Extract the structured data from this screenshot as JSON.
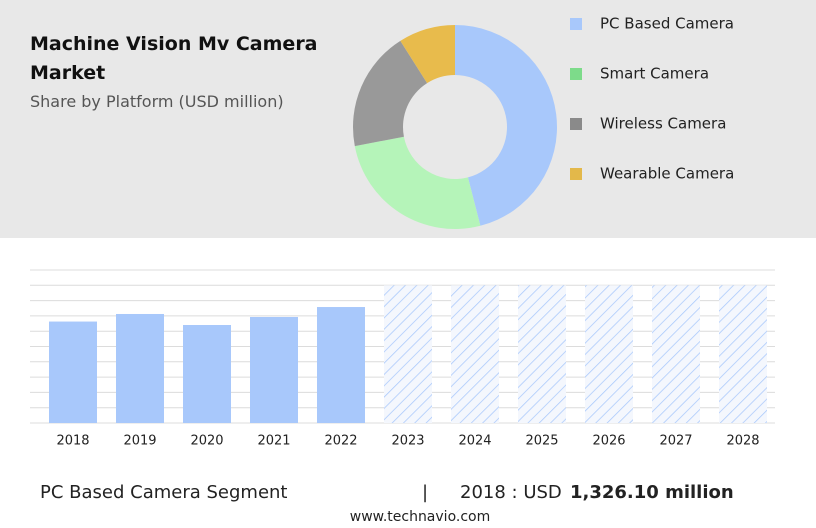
{
  "chart_data": [
    {
      "type": "pie",
      "title": "Machine Vision Mv Camera Market",
      "subtitle": "Share by Platform (USD million)",
      "categories": [
        "PC Based Camera",
        "Smart Camera",
        "Wireless Camera",
        "Wearable Camera"
      ],
      "values": [
        46,
        26,
        19,
        9
      ],
      "colors": [
        "#a8c8fb",
        "#b5f4b9",
        "#999999",
        "#e8bb4c"
      ],
      "legend_colors": [
        "#a8c8fb",
        "#7ddb8a",
        "#8a8a8a",
        "#e3b84a"
      ],
      "donut": true,
      "legend": "right"
    },
    {
      "type": "bar",
      "categories": [
        "2018",
        "2019",
        "2020",
        "2021",
        "2022",
        "2023",
        "2024",
        "2025",
        "2026",
        "2027",
        "2028"
      ],
      "values": [
        1326.1,
        1425,
        1281,
        1386,
        1516,
        1800,
        1800,
        1800,
        1800,
        1800,
        1800
      ],
      "hatched": [
        false,
        false,
        false,
        false,
        false,
        true,
        true,
        true,
        true,
        true,
        true
      ],
      "color": "#a8c8fb",
      "ylim": [
        0,
        2000
      ],
      "yticks": [
        0,
        200,
        400,
        600,
        800,
        1000,
        1200,
        1400,
        1600,
        1800,
        2000
      ],
      "grid": true
    }
  ],
  "footer": {
    "segment": "PC Based Camera Segment",
    "separator": "|",
    "year_label": "2018 : USD",
    "value_label": "1,326.10 million",
    "source": "www.technavio.com"
  }
}
